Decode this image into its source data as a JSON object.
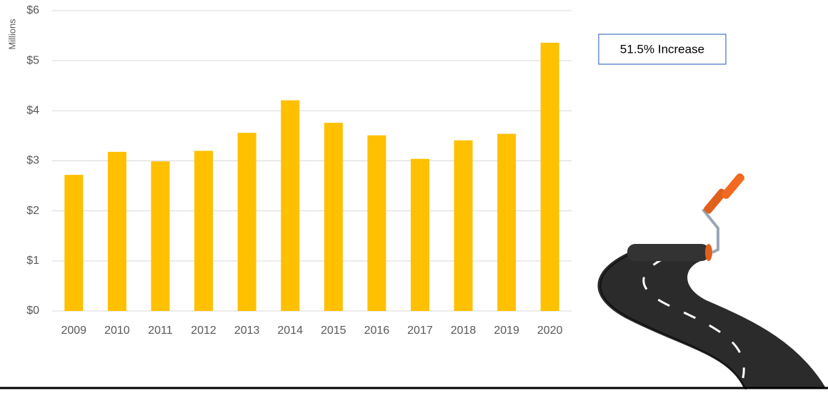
{
  "chart_data": {
    "type": "bar",
    "y_label": "Millions",
    "annotation": "51.5% Increase",
    "categories": [
      "2009",
      "2010",
      "2011",
      "2012",
      "2013",
      "2014",
      "2015",
      "2016",
      "2017",
      "2018",
      "2019",
      "2020"
    ],
    "values": [
      2.72,
      3.18,
      2.99,
      3.2,
      3.56,
      4.21,
      3.76,
      3.51,
      3.04,
      3.41,
      3.54,
      5.36
    ],
    "color": "#ffc000",
    "ylim": [
      0,
      6
    ],
    "yticks": [
      {
        "value": 0,
        "label": "$0"
      },
      {
        "value": 1,
        "label": "$1"
      },
      {
        "value": 2,
        "label": "$2"
      },
      {
        "value": 3,
        "label": "$3"
      },
      {
        "value": 4,
        "label": "$4"
      },
      {
        "value": 5,
        "label": "$5"
      },
      {
        "value": 6,
        "label": "$6"
      }
    ],
    "grid": true
  }
}
